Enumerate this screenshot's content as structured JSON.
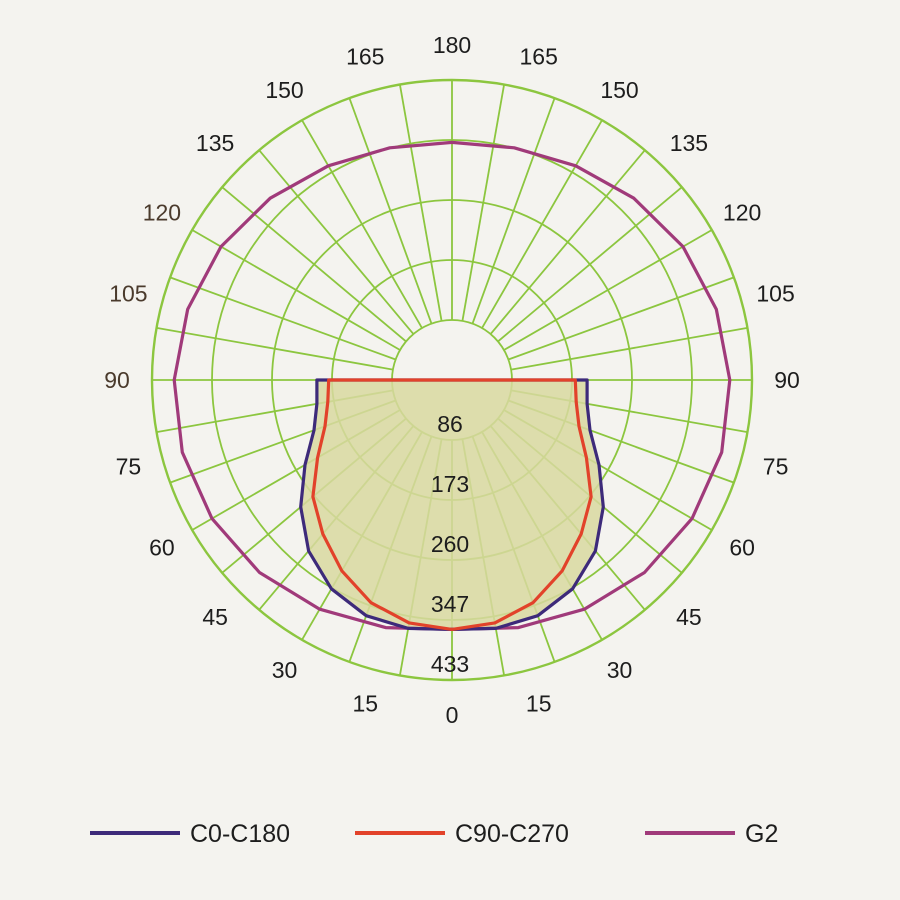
{
  "chart_data": {
    "type": "polar-line",
    "angle_labels_left": [
      "0",
      "15",
      "30",
      "45",
      "60",
      "75",
      "90",
      "105",
      "120",
      "135",
      "150",
      "165",
      "180"
    ],
    "angle_labels_right": [
      "15",
      "30",
      "45",
      "60",
      "75",
      "90",
      "105",
      "120",
      "135",
      "150",
      "165"
    ],
    "radial_ticks": [
      "86",
      "173",
      "260",
      "347",
      "433"
    ],
    "rmax": 433,
    "grid": true,
    "legend_position": "bottom",
    "series": [
      {
        "name": "C0-C180",
        "color": "#3d2a7a",
        "fill": "#d8d8a0",
        "points": [
          {
            "angle": -90,
            "value": 195
          },
          {
            "angle": -80,
            "value": 198
          },
          {
            "angle": -70,
            "value": 212
          },
          {
            "angle": -60,
            "value": 245
          },
          {
            "angle": -50,
            "value": 285
          },
          {
            "angle": -40,
            "value": 322
          },
          {
            "angle": -30,
            "value": 348
          },
          {
            "angle": -20,
            "value": 362
          },
          {
            "angle": -10,
            "value": 364
          },
          {
            "angle": 0,
            "value": 360
          },
          {
            "angle": 10,
            "value": 364
          },
          {
            "angle": 20,
            "value": 362
          },
          {
            "angle": 30,
            "value": 348
          },
          {
            "angle": 40,
            "value": 322
          },
          {
            "angle": 50,
            "value": 285
          },
          {
            "angle": 60,
            "value": 245
          },
          {
            "angle": 70,
            "value": 212
          },
          {
            "angle": 80,
            "value": 198
          },
          {
            "angle": 90,
            "value": 195
          }
        ]
      },
      {
        "name": "C90-C270",
        "color": "#e2422a",
        "points": [
          {
            "angle": -90,
            "value": 178
          },
          {
            "angle": -80,
            "value": 182
          },
          {
            "angle": -70,
            "value": 195
          },
          {
            "angle": -60,
            "value": 224
          },
          {
            "angle": -50,
            "value": 262
          },
          {
            "angle": -40,
            "value": 290
          },
          {
            "angle": -30,
            "value": 318
          },
          {
            "angle": -20,
            "value": 342
          },
          {
            "angle": -10,
            "value": 356
          },
          {
            "angle": 0,
            "value": 360
          },
          {
            "angle": 10,
            "value": 356
          },
          {
            "angle": 20,
            "value": 342
          },
          {
            "angle": 30,
            "value": 318
          },
          {
            "angle": 40,
            "value": 290
          },
          {
            "angle": 50,
            "value": 262
          },
          {
            "angle": 60,
            "value": 224
          },
          {
            "angle": 70,
            "value": 195
          },
          {
            "angle": 80,
            "value": 182
          },
          {
            "angle": 90,
            "value": 178
          }
        ]
      },
      {
        "name": "G2",
        "color": "#a03a7a",
        "points": [
          {
            "angle": 0,
            "value": 360
          },
          {
            "angle": 15,
            "value": 370
          },
          {
            "angle": 30,
            "value": 382
          },
          {
            "angle": 45,
            "value": 393
          },
          {
            "angle": 60,
            "value": 400
          },
          {
            "angle": 75,
            "value": 403
          },
          {
            "angle": 90,
            "value": 401
          },
          {
            "angle": 105,
            "value": 395
          },
          {
            "angle": 120,
            "value": 385
          },
          {
            "angle": 135,
            "value": 371
          },
          {
            "angle": 150,
            "value": 357
          },
          {
            "angle": 165,
            "value": 347
          },
          {
            "angle": 180,
            "value": 343
          },
          {
            "angle": -165,
            "value": 347
          },
          {
            "angle": -150,
            "value": 357
          },
          {
            "angle": -135,
            "value": 371
          },
          {
            "angle": -120,
            "value": 385
          },
          {
            "angle": -105,
            "value": 395
          },
          {
            "angle": -90,
            "value": 401
          },
          {
            "angle": -75,
            "value": 403
          },
          {
            "angle": -60,
            "value": 400
          },
          {
            "angle": -45,
            "value": 393
          },
          {
            "angle": -30,
            "value": 382
          },
          {
            "angle": -15,
            "value": 370
          }
        ]
      }
    ],
    "legend": [
      {
        "label": "C0-C180",
        "color": "#3d2a7a"
      },
      {
        "label": "C90-C270",
        "color": "#e2422a"
      },
      {
        "label": "G2",
        "color": "#a03a7a"
      }
    ]
  }
}
